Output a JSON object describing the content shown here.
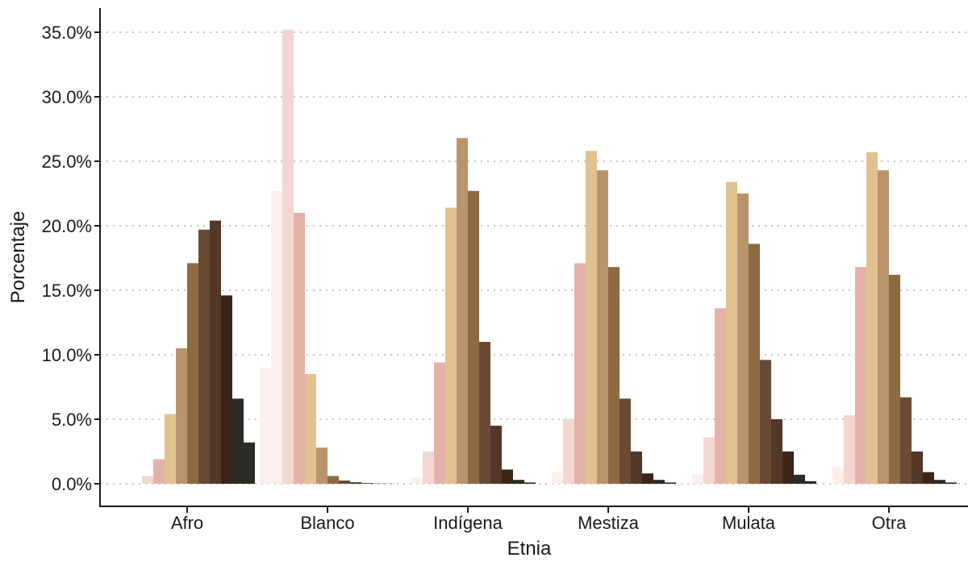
{
  "chart_data": {
    "type": "bar",
    "title": "",
    "xlabel": "Etnia",
    "ylabel": "Porcentaje",
    "categories": [
      "Afro",
      "Blanco",
      "Indígena",
      "Mestiza",
      "Mulata",
      "Otra"
    ],
    "ylim": [
      0,
      36
    ],
    "yticks": [
      0,
      5,
      10,
      15,
      20,
      25,
      30,
      35
    ],
    "ytick_labels": [
      "0.0%",
      "5.0%",
      "10.0%",
      "15.0%",
      "20.0%",
      "25.0%",
      "30.0%",
      "35.0%"
    ],
    "grid": "horizontal-dotted",
    "legend": "none",
    "series_colors": [
      "#fcefee",
      "#f3d6d0",
      "#e4b1a8",
      "#e2c191",
      "#b9946b",
      "#8d6a42",
      "#6b4a34",
      "#533728",
      "#3b2418",
      "#2b2b26"
    ],
    "values": [
      [
        0.0,
        0.0,
        0.6,
        1.9,
        5.4,
        10.5,
        17.1,
        19.7,
        20.4,
        14.6,
        6.6,
        3.2
      ],
      [
        9.0,
        22.7,
        35.2,
        21.0,
        8.5,
        2.8,
        0.6,
        0.25,
        0.12,
        0.05,
        0.02,
        0.01
      ],
      [
        0.0,
        0.5,
        2.5,
        9.4,
        21.4,
        26.8,
        22.7,
        11.0,
        4.5,
        1.1,
        0.3,
        0.1
      ],
      [
        0.0,
        0.9,
        5.0,
        17.1,
        25.8,
        24.3,
        16.8,
        6.6,
        2.5,
        0.8,
        0.3,
        0.1
      ],
      [
        0.0,
        0.7,
        3.6,
        13.6,
        23.4,
        22.5,
        18.6,
        9.6,
        5.0,
        2.5,
        0.7,
        0.2
      ],
      [
        0.0,
        1.3,
        5.3,
        16.8,
        25.7,
        24.3,
        16.2,
        6.7,
        2.5,
        0.9,
        0.3,
        0.1
      ]
    ]
  }
}
